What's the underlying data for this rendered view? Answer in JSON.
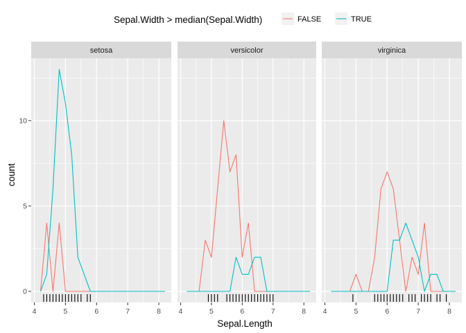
{
  "chart_data": {
    "type": "line",
    "xlabel": "Sepal.Length",
    "ylabel": "count",
    "xlim": [
      3.9,
      8.4
    ],
    "ylim": [
      -0.65,
      13.65
    ],
    "x_ticks": [
      "4",
      "5",
      "6",
      "7",
      "8"
    ],
    "y_ticks": [
      "0",
      "5",
      "10"
    ],
    "grid": true,
    "legend": {
      "title": "Sepal.Width > median(Sepal.Width)",
      "position": "top",
      "entries": [
        "FALSE",
        "TRUE"
      ]
    },
    "colors": {
      "FALSE": "#F8766D",
      "TRUE": "#00BFC4",
      "panel": "#EBEBEB",
      "strip": "#D9D9D9"
    },
    "facets": [
      {
        "name": "setosa",
        "series": [
          {
            "name": "FALSE",
            "x": [
              4.2,
              4.4,
              4.6,
              4.8,
              5.0,
              5.2,
              5.4,
              5.6,
              5.8
            ],
            "y": [
              0,
              4,
              0,
              4,
              0,
              0,
              0,
              0,
              0
            ]
          },
          {
            "name": "TRUE",
            "x": [
              4.2,
              4.4,
              4.6,
              4.8,
              5.0,
              5.2,
              5.4,
              5.6,
              5.8,
              6.0,
              6.2,
              6.4,
              6.6,
              6.8,
              7.0,
              7.2,
              7.4,
              7.6,
              7.8,
              8.0,
              8.2
            ],
            "y": [
              0,
              1,
              6,
              13,
              11,
              8,
              2,
              1,
              0,
              0,
              0,
              0,
              0,
              0,
              0,
              0,
              0,
              0,
              0,
              0,
              0
            ]
          }
        ],
        "rug": [
          4.3,
          4.4,
          4.5,
          4.6,
          4.7,
          4.8,
          4.9,
          5.0,
          5.1,
          5.2,
          5.3,
          5.4,
          5.5,
          5.7,
          5.8
        ]
      },
      {
        "name": "versicolor",
        "series": [
          {
            "name": "FALSE",
            "x": [
              4.6,
              4.8,
              5.0,
              5.2,
              5.4,
              5.6,
              5.8,
              6.0,
              6.2,
              6.4,
              6.6,
              6.8,
              7.0,
              7.2
            ],
            "y": [
              0,
              3,
              2,
              6,
              10,
              7,
              8,
              2,
              4,
              0,
              0,
              0,
              0,
              0
            ]
          },
          {
            "name": "TRUE",
            "x": [
              4.2,
              4.4,
              4.6,
              4.8,
              5.0,
              5.2,
              5.4,
              5.6,
              5.8,
              6.0,
              6.2,
              6.4,
              6.6,
              6.8,
              7.0,
              7.2,
              7.4,
              7.6,
              7.8,
              8.0,
              8.2
            ],
            "y": [
              0,
              0,
              0,
              0,
              0,
              0,
              0,
              0,
              2,
              1,
              1,
              2,
              2,
              0,
              0,
              0,
              0,
              0,
              0,
              0,
              0
            ]
          }
        ],
        "rug": [
          4.9,
          5.0,
          5.1,
          5.2,
          5.5,
          5.6,
          5.7,
          5.8,
          5.9,
          6.0,
          6.1,
          6.2,
          6.3,
          6.4,
          6.5,
          6.6,
          6.7,
          6.8,
          6.9,
          7.0
        ]
      },
      {
        "name": "virginica",
        "series": [
          {
            "name": "FALSE",
            "x": [
              4.6,
              4.8,
              5.0,
              5.2,
              5.4,
              5.6,
              5.8,
              6.0,
              6.2,
              6.4,
              6.6,
              6.8,
              7.0,
              7.2,
              7.4,
              7.6,
              7.8,
              8.0,
              8.2
            ],
            "y": [
              0,
              0,
              1,
              0,
              0,
              2,
              6,
              7,
              6,
              3,
              0,
              2,
              1,
              4,
              0,
              0,
              0,
              0,
              0
            ]
          },
          {
            "name": "TRUE",
            "x": [
              4.2,
              4.4,
              4.6,
              4.8,
              5.0,
              5.2,
              5.4,
              5.6,
              5.8,
              6.0,
              6.2,
              6.4,
              6.6,
              6.8,
              7.0,
              7.2,
              7.4,
              7.6,
              7.8,
              8.0,
              8.2
            ],
            "y": [
              0,
              0,
              0,
              0,
              0,
              0,
              0,
              0,
              0,
              0,
              3,
              3,
              4,
              3,
              2,
              0,
              1,
              1,
              0,
              0,
              0
            ]
          }
        ],
        "rug": [
          4.9,
          5.6,
          5.7,
          5.8,
          5.9,
          6.0,
          6.1,
          6.2,
          6.3,
          6.4,
          6.5,
          6.7,
          6.8,
          6.9,
          7.1,
          7.2,
          7.3,
          7.4,
          7.6,
          7.7,
          7.9
        ]
      }
    ]
  }
}
